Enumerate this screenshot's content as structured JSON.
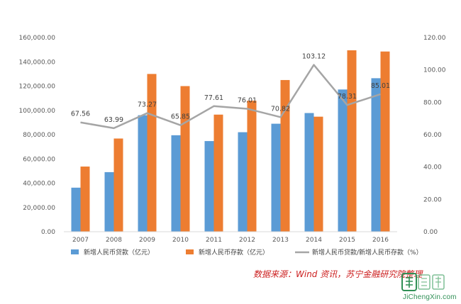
{
  "chart_data": {
    "type": "bar",
    "categories": [
      "2007",
      "2008",
      "2009",
      "2010",
      "2011",
      "2012",
      "2013",
      "2014",
      "2015",
      "2016"
    ],
    "series": [
      {
        "name": "新增人民币贷款（亿元）",
        "kind": "bar",
        "axis": "left",
        "color": "#5b9bd5",
        "values": [
          36300,
          49100,
          96000,
          79500,
          74700,
          82000,
          89000,
          97800,
          117200,
          126500
        ]
      },
      {
        "name": "新增人民币存款（亿元）",
        "kind": "bar",
        "axis": "left",
        "color": "#ed7d31",
        "values": [
          53700,
          76800,
          130000,
          120000,
          96500,
          108000,
          125000,
          94800,
          149500,
          148500
        ]
      },
      {
        "name": "新增人民币贷款/新增人民币存款（%）",
        "kind": "line",
        "axis": "right",
        "color": "#a5a5a5",
        "values": [
          67.56,
          63.99,
          73.27,
          65.85,
          77.61,
          76.01,
          70.82,
          103.12,
          78.31,
          85.01
        ],
        "labels": [
          "67.56",
          "63.99",
          "73.27",
          "65.85",
          "77.61",
          "76.01",
          "70.82",
          "103.12",
          "78.31",
          "85.01"
        ]
      }
    ],
    "left_axis": {
      "ylim": [
        0,
        160000
      ],
      "ticks": [
        "0.00",
        "20,000.00",
        "40,000.00",
        "60,000.00",
        "80,000.00",
        "100,000.00",
        "120,000.00",
        "140,000.00",
        "160,000.00"
      ]
    },
    "right_axis": {
      "ylim": [
        0,
        120
      ],
      "ticks": [
        "0.00",
        "20.00",
        "40.00",
        "60.00",
        "80.00",
        "100.00",
        "120.00"
      ]
    },
    "grid": false,
    "legend_position": "bottom"
  },
  "source_note": "数据来源：Wind 资讯，苏宁金融研究院整理",
  "watermark": {
    "logo_text": "集诚信",
    "site": "JiChengXin.com"
  }
}
